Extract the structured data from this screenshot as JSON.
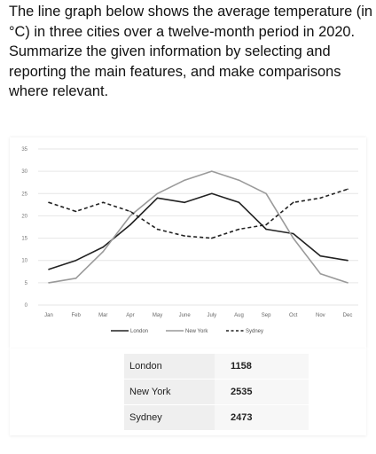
{
  "prompt": "The line graph below shows the average temperature (in °C) in three cities over a twelve-month period in 2020. Summarize the given information by selecting and reporting the main features, and make comparisons where relevant.",
  "chart_data": {
    "type": "line",
    "title": "",
    "xlabel": "",
    "ylabel": "",
    "ylim": [
      0,
      35
    ],
    "yticks": [
      0,
      5,
      10,
      15,
      20,
      25,
      30,
      35
    ],
    "grid": true,
    "legend_position": "bottom",
    "categories": [
      "Jan",
      "Feb",
      "Mar",
      "Apr",
      "May",
      "June",
      "July",
      "Aug",
      "Sep",
      "Oct",
      "Nov",
      "Dec"
    ],
    "series": [
      {
        "name": "London",
        "style": "solid",
        "color": "#222222",
        "values": [
          8,
          10,
          13,
          18,
          24,
          23,
          25,
          23,
          17,
          16,
          11,
          10
        ]
      },
      {
        "name": "New York",
        "style": "solid",
        "color": "#9a9a9a",
        "values": [
          5,
          6,
          12,
          20,
          25,
          28,
          30,
          28,
          25,
          15,
          7,
          5
        ]
      },
      {
        "name": "Sydney",
        "style": "dashed",
        "color": "#222222",
        "values": [
          23,
          21,
          23,
          21,
          17,
          15.5,
          15,
          17,
          18,
          23,
          24,
          26
        ]
      }
    ]
  },
  "table": {
    "rows": [
      {
        "city": "London",
        "value": "1158"
      },
      {
        "city": "New York",
        "value": "2535"
      },
      {
        "city": "Sydney",
        "value": "2473"
      }
    ]
  }
}
